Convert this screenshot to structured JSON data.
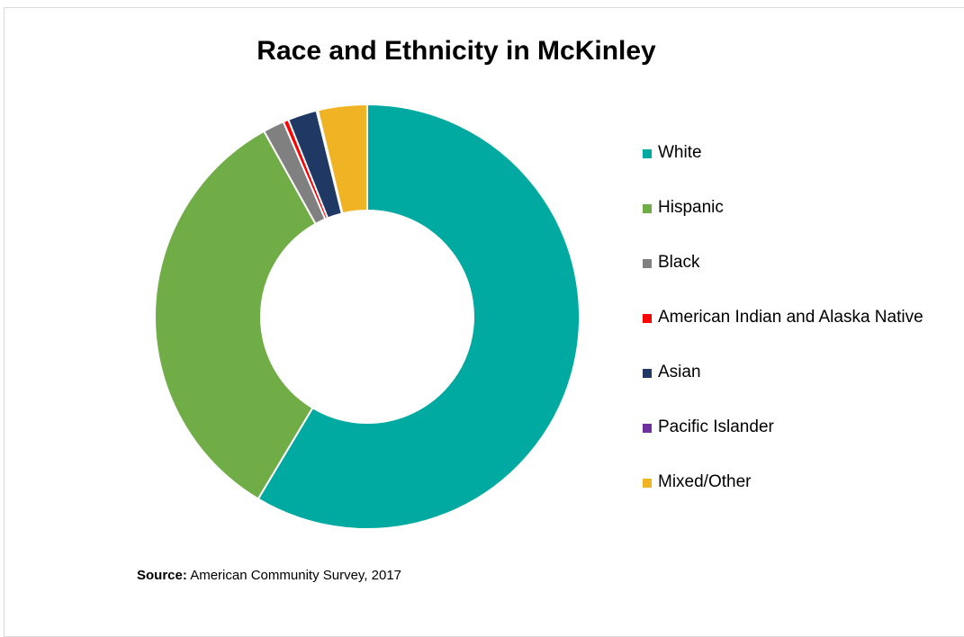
{
  "chart_data": {
    "type": "pie",
    "title": "Race and Ethnicity in McKinley",
    "categories": [
      "White",
      "Hispanic",
      "Black",
      "American Indian and Alaska Native",
      "Asian",
      "Pacific Islander",
      "Mixed/Other"
    ],
    "values": [
      58.0,
      33.0,
      1.6,
      0.4,
      2.2,
      0.1,
      3.7
    ],
    "value_unit": "percent (estimated)",
    "colors": [
      "#00AAA0",
      "#70AD47",
      "#808080",
      "#FF0000",
      "#1F3864",
      "#7030A0",
      "#F0B323"
    ],
    "legend_position": "right",
    "start_angle_degrees": 0,
    "direction": "clockwise",
    "hole": true
  },
  "source": {
    "label": "Source:",
    "text": " American Community Survey, 2017"
  }
}
